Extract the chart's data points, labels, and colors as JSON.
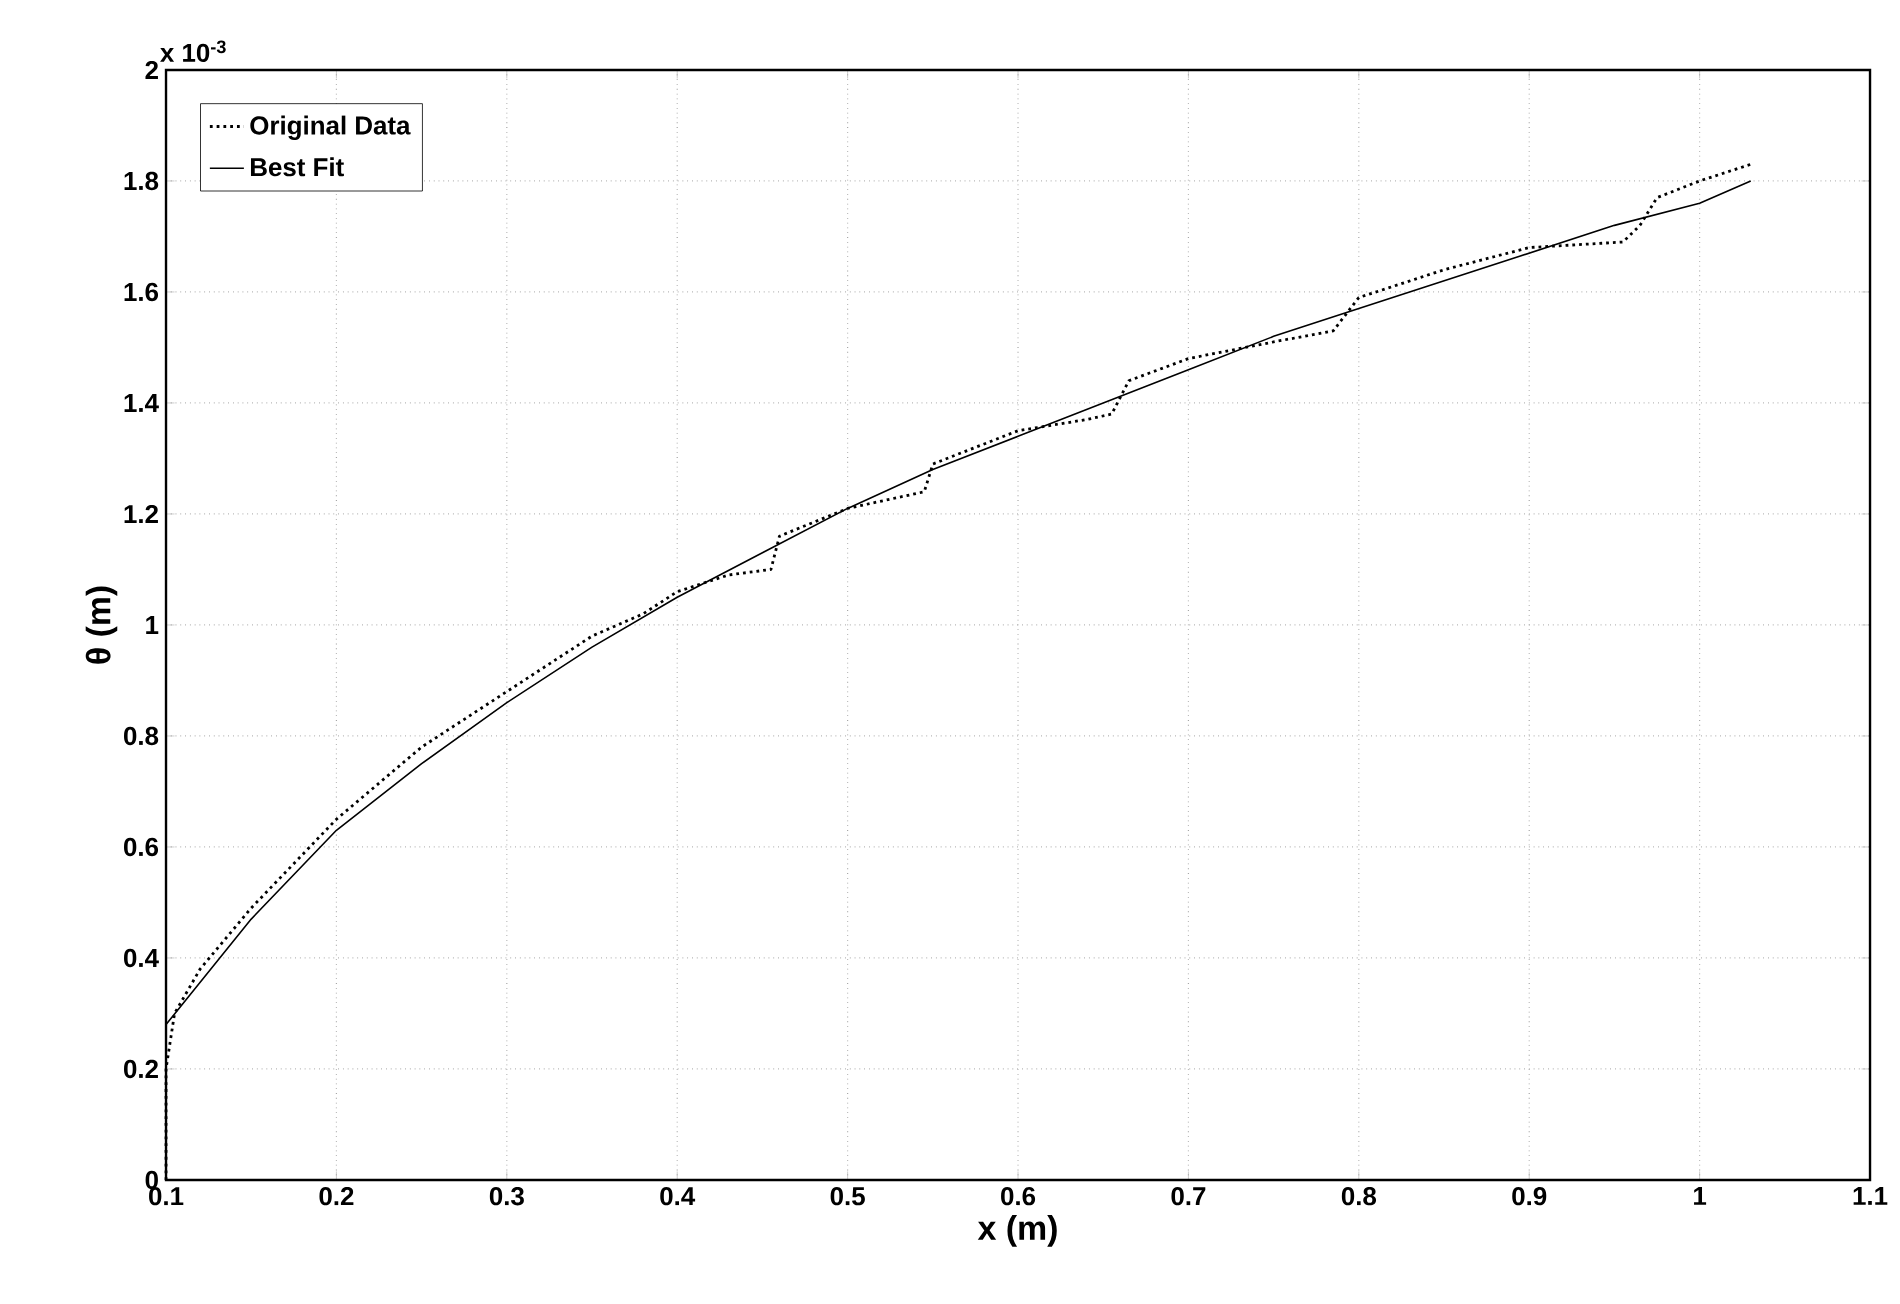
{
  "chart_data": {
    "type": "line",
    "xlabel": "x (m)",
    "ylabel": "θ (m)",
    "annotations": [
      "x 10$^{-3}$"
    ],
    "xlim": [
      0.1,
      1.1
    ],
    "xticks": [
      0.1,
      0.2,
      0.3,
      0.4,
      0.5,
      0.6,
      0.7,
      0.8,
      0.9,
      1,
      1.1
    ],
    "ylim": [
      0,
      2
    ],
    "yticks": [
      0,
      0.2,
      0.4,
      0.6,
      0.8,
      1,
      1.2,
      1.4,
      1.6,
      1.8,
      2
    ],
    "grid": true,
    "legend": "top left",
    "series": [
      {
        "name": "Original Data",
        "color": "#000000",
        "line_style": "dotted",
        "x": [
          0.1,
          0.1,
          0.105,
          0.12,
          0.15,
          0.2,
          0.25,
          0.3,
          0.35,
          0.38,
          0.4,
          0.43,
          0.455,
          0.46,
          0.5,
          0.53,
          0.545,
          0.55,
          0.6,
          0.64,
          0.655,
          0.665,
          0.7,
          0.75,
          0.785,
          0.8,
          0.85,
          0.9,
          0.955,
          0.965,
          0.975,
          1.0,
          1.03
        ],
        "values": [
          0.0,
          0.2,
          0.3,
          0.38,
          0.49,
          0.65,
          0.78,
          0.88,
          0.98,
          1.02,
          1.06,
          1.09,
          1.1,
          1.16,
          1.21,
          1.23,
          1.24,
          1.29,
          1.35,
          1.37,
          1.38,
          1.44,
          1.48,
          1.51,
          1.53,
          1.59,
          1.64,
          1.68,
          1.69,
          1.72,
          1.77,
          1.8,
          1.83
        ]
      },
      {
        "name": "Best Fit",
        "color": "#000000",
        "line_style": "solid",
        "x": [
          0.1,
          0.15,
          0.2,
          0.25,
          0.3,
          0.35,
          0.4,
          0.45,
          0.5,
          0.55,
          0.6,
          0.65,
          0.7,
          0.75,
          0.8,
          0.85,
          0.9,
          0.95,
          1.0,
          1.03
        ],
        "values": [
          0.28,
          0.47,
          0.63,
          0.75,
          0.86,
          0.96,
          1.05,
          1.13,
          1.21,
          1.28,
          1.34,
          1.4,
          1.46,
          1.52,
          1.57,
          1.62,
          1.67,
          1.72,
          1.76,
          1.8
        ]
      }
    ]
  }
}
